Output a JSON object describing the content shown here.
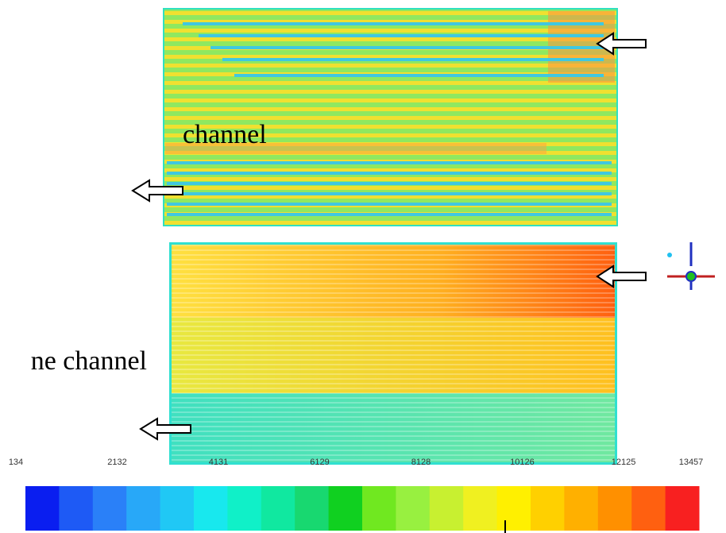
{
  "labels": [
    "channel",
    "ne channel"
  ],
  "colorbar": {
    "ticks": [
      134,
      2132,
      4131,
      6129,
      8128,
      10126,
      12125,
      13457
    ],
    "colors": [
      "#0a1ef0",
      "#1e5af5",
      "#2a80f8",
      "#28a8f8",
      "#20c8f5",
      "#18e8ee",
      "#10f0c8",
      "#10e8a0",
      "#18d870",
      "#10d020",
      "#70e820",
      "#98f040",
      "#c8f030",
      "#f0f020",
      "#fff000",
      "#ffd000",
      "#ffb000",
      "#ff9000",
      "#ff6010",
      "#f82020"
    ]
  }
}
